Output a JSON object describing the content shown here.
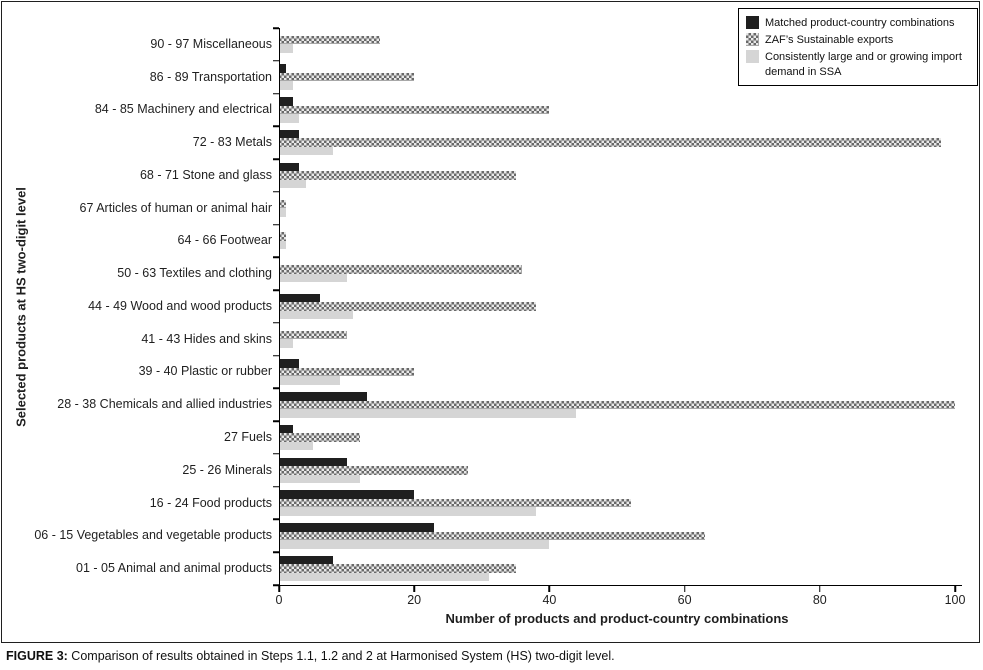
{
  "figure": {
    "caption_label": "FIGURE 3:",
    "caption_text": "Comparison of results obtained in Steps 1.1, 1.2 and 2 at Harmonised System (HS) two-digit level."
  },
  "chart_data": {
    "type": "bar",
    "orientation": "horizontal",
    "title": "",
    "xlabel": "Number of products and product-country combinations",
    "ylabel": "Selected products at HS two-digit level",
    "xlim": [
      0,
      100
    ],
    "xticks": [
      0,
      20,
      40,
      60,
      80,
      100
    ],
    "grid": false,
    "legend_position": "top-right",
    "categories": [
      "90 - 97 Miscellaneous",
      "86 - 89 Transportation",
      "84 - 85 Machinery and electrical",
      "72 - 83 Metals",
      "68 - 71 Stone and glass",
      "67 Articles of human or animal hair",
      "64 - 66 Footwear",
      "50 - 63 Textiles and clothing",
      "44 - 49 Wood and wood products",
      "41 - 43 Hides and skins",
      "39 - 40 Plastic or rubber",
      "28 - 38 Chemicals and allied industries",
      "27 Fuels",
      "25 - 26 Minerals",
      "16 - 24 Food products",
      "06 - 15 Vegetables and vegetable products",
      "01 - 05 Animal and animal products"
    ],
    "series": [
      {
        "key": "matched",
        "name": "Matched product-country combinations",
        "fill": "solid-black",
        "color": "#1f1f1f",
        "values": [
          0,
          1,
          2,
          3,
          3,
          0,
          0,
          0,
          6,
          0,
          3,
          13,
          2,
          10,
          20,
          23,
          8
        ]
      },
      {
        "key": "zaf-sustainable-exports",
        "name": "ZAF’s Sustainable exports",
        "fill": "gray-crosshatch-pattern",
        "color": "#696969",
        "values": [
          15,
          20,
          40,
          98,
          35,
          1,
          1,
          36,
          38,
          10,
          20,
          100,
          12,
          28,
          52,
          63,
          35
        ]
      },
      {
        "key": "import-demand-ssa",
        "name": "Consistently large and or growing import demand in SSA",
        "fill": "solid-light-gray",
        "color": "#d5d5d5",
        "values": [
          2,
          2,
          3,
          8,
          4,
          1,
          1,
          10,
          11,
          2,
          9,
          44,
          5,
          12,
          38,
          40,
          31
        ]
      }
    ]
  }
}
